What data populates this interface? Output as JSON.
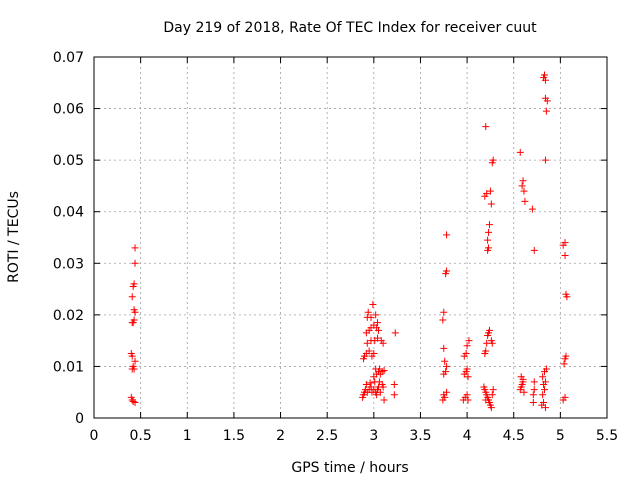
{
  "chart_data": {
    "type": "scatter",
    "title": "Day 219 of 2018, Rate Of TEC Index for receiver cuut",
    "xlabel": "GPS time / hours",
    "ylabel": "ROTI / TECUs",
    "xlim": [
      0,
      5.5
    ],
    "ylim": [
      0,
      0.07
    ],
    "xticks": [
      "0",
      "0.5",
      "1",
      "1.5",
      "2",
      "2.5",
      "3",
      "3.5",
      "4",
      "4.5",
      "5",
      "5.5"
    ],
    "yticks": [
      "0",
      "0.01",
      "0.02",
      "0.03",
      "0.04",
      "0.05",
      "0.06",
      "0.07"
    ],
    "grid": true,
    "marker": "+",
    "color": "#ff0000",
    "series": [
      {
        "name": "ROTI",
        "points": [
          [
            0.4,
            0.004
          ],
          [
            0.41,
            0.0035
          ],
          [
            0.42,
            0.0032
          ],
          [
            0.44,
            0.003
          ],
          [
            0.41,
            0.0095
          ],
          [
            0.42,
            0.01
          ],
          [
            0.43,
            0.0095
          ],
          [
            0.41,
            0.012
          ],
          [
            0.4,
            0.0125
          ],
          [
            0.44,
            0.011
          ],
          [
            0.42,
            0.0185
          ],
          [
            0.43,
            0.019
          ],
          [
            0.41,
            0.0185
          ],
          [
            0.44,
            0.0205
          ],
          [
            0.43,
            0.021
          ],
          [
            0.41,
            0.0235
          ],
          [
            0.42,
            0.0255
          ],
          [
            0.43,
            0.026
          ],
          [
            0.44,
            0.03
          ],
          [
            0.44,
            0.033
          ],
          [
            2.88,
            0.004
          ],
          [
            2.89,
            0.0045
          ],
          [
            2.9,
            0.005
          ],
          [
            2.91,
            0.0055
          ],
          [
            2.93,
            0.005
          ],
          [
            2.95,
            0.0055
          ],
          [
            2.97,
            0.006
          ],
          [
            2.98,
            0.005
          ],
          [
            3.0,
            0.0055
          ],
          [
            3.02,
            0.005
          ],
          [
            3.04,
            0.0055
          ],
          [
            3.05,
            0.006
          ],
          [
            3.07,
            0.005
          ],
          [
            3.09,
            0.0065
          ],
          [
            3.1,
            0.006
          ],
          [
            2.92,
            0.0065
          ],
          [
            2.96,
            0.0068
          ],
          [
            3.01,
            0.007
          ],
          [
            3.03,
            0.0045
          ],
          [
            3.06,
            0.007
          ],
          [
            3.0,
            0.008
          ],
          [
            3.03,
            0.0085
          ],
          [
            3.05,
            0.009
          ],
          [
            3.07,
            0.0085
          ],
          [
            3.09,
            0.009
          ],
          [
            3.11,
            0.0092
          ],
          [
            3.02,
            0.0095
          ],
          [
            3.06,
            0.0095
          ],
          [
            2.89,
            0.0115
          ],
          [
            2.9,
            0.012
          ],
          [
            2.92,
            0.0125
          ],
          [
            2.95,
            0.013
          ],
          [
            2.98,
            0.012
          ],
          [
            3.0,
            0.0125
          ],
          [
            2.93,
            0.0145
          ],
          [
            2.97,
            0.015
          ],
          [
            3.01,
            0.015
          ],
          [
            3.04,
            0.0155
          ],
          [
            3.08,
            0.015
          ],
          [
            3.1,
            0.0145
          ],
          [
            2.92,
            0.0165
          ],
          [
            2.95,
            0.017
          ],
          [
            2.97,
            0.0175
          ],
          [
            3.0,
            0.018
          ],
          [
            3.03,
            0.0175
          ],
          [
            3.05,
            0.017
          ],
          [
            2.93,
            0.0195
          ],
          [
            2.94,
            0.0205
          ],
          [
            2.97,
            0.0195
          ],
          [
            2.99,
            0.022
          ],
          [
            3.02,
            0.02
          ],
          [
            3.04,
            0.0185
          ],
          [
            3.11,
            0.0035
          ],
          [
            3.22,
            0.0045
          ],
          [
            3.22,
            0.0065
          ],
          [
            3.23,
            0.0165
          ],
          [
            3.74,
            0.0035
          ],
          [
            3.75,
            0.0045
          ],
          [
            3.76,
            0.004
          ],
          [
            3.78,
            0.005
          ],
          [
            3.75,
            0.0085
          ],
          [
            3.77,
            0.009
          ],
          [
            3.78,
            0.01
          ],
          [
            3.76,
            0.011
          ],
          [
            3.75,
            0.0135
          ],
          [
            3.74,
            0.019
          ],
          [
            3.75,
            0.0205
          ],
          [
            3.77,
            0.028
          ],
          [
            3.78,
            0.0285
          ],
          [
            3.78,
            0.0355
          ],
          [
            3.96,
            0.0035
          ],
          [
            3.98,
            0.004
          ],
          [
            4.0,
            0.0045
          ],
          [
            4.01,
            0.0035
          ],
          [
            3.97,
            0.0085
          ],
          [
            3.99,
            0.009
          ],
          [
            4.0,
            0.0095
          ],
          [
            4.01,
            0.008
          ],
          [
            3.97,
            0.012
          ],
          [
            3.99,
            0.0125
          ],
          [
            4.0,
            0.014
          ],
          [
            4.02,
            0.015
          ],
          [
            4.18,
            0.006
          ],
          [
            4.19,
            0.0055
          ],
          [
            4.2,
            0.005
          ],
          [
            4.21,
            0.0045
          ],
          [
            4.22,
            0.004
          ],
          [
            4.23,
            0.0035
          ],
          [
            4.24,
            0.003
          ],
          [
            4.25,
            0.0025
          ],
          [
            4.26,
            0.002
          ],
          [
            4.27,
            0.0045
          ],
          [
            4.28,
            0.0055
          ],
          [
            4.2,
            0.0035
          ],
          [
            4.19,
            0.0125
          ],
          [
            4.2,
            0.013
          ],
          [
            4.21,
            0.0145
          ],
          [
            4.22,
            0.016
          ],
          [
            4.23,
            0.0165
          ],
          [
            4.24,
            0.017
          ],
          [
            4.26,
            0.015
          ],
          [
            4.27,
            0.0145
          ],
          [
            4.22,
            0.0325
          ],
          [
            4.23,
            0.033
          ],
          [
            4.22,
            0.0345
          ],
          [
            4.23,
            0.036
          ],
          [
            4.24,
            0.0375
          ],
          [
            4.26,
            0.0415
          ],
          [
            4.19,
            0.043
          ],
          [
            4.21,
            0.0435
          ],
          [
            4.25,
            0.044
          ],
          [
            4.27,
            0.0495
          ],
          [
            4.28,
            0.05
          ],
          [
            4.2,
            0.0565
          ],
          [
            4.57,
            0.0055
          ],
          [
            4.58,
            0.006
          ],
          [
            4.59,
            0.0065
          ],
          [
            4.6,
            0.007
          ],
          [
            4.58,
            0.008
          ],
          [
            4.6,
            0.0075
          ],
          [
            4.61,
            0.005
          ],
          [
            4.57,
            0.0515
          ],
          [
            4.59,
            0.045
          ],
          [
            4.6,
            0.046
          ],
          [
            4.61,
            0.044
          ],
          [
            4.62,
            0.042
          ],
          [
            4.71,
            0.003
          ],
          [
            4.71,
            0.0045
          ],
          [
            4.72,
            0.0055
          ],
          [
            4.72,
            0.007
          ],
          [
            4.7,
            0.0405
          ],
          [
            4.72,
            0.0325
          ],
          [
            4.8,
            0.0025
          ],
          [
            4.82,
            0.003
          ],
          [
            4.84,
            0.002
          ],
          [
            4.81,
            0.0045
          ],
          [
            4.83,
            0.0055
          ],
          [
            4.82,
            0.0065
          ],
          [
            4.84,
            0.007
          ],
          [
            4.81,
            0.008
          ],
          [
            4.83,
            0.009
          ],
          [
            4.85,
            0.0095
          ],
          [
            4.82,
            0.066
          ],
          [
            4.83,
            0.0665
          ],
          [
            4.84,
            0.0655
          ],
          [
            4.84,
            0.062
          ],
          [
            4.86,
            0.0615
          ],
          [
            4.85,
            0.0595
          ],
          [
            4.84,
            0.05
          ],
          [
            5.03,
            0.0035
          ],
          [
            5.05,
            0.004
          ],
          [
            5.04,
            0.0105
          ],
          [
            5.05,
            0.0115
          ],
          [
            5.06,
            0.012
          ],
          [
            5.03,
            0.0335
          ],
          [
            5.05,
            0.034
          ],
          [
            5.05,
            0.0315
          ],
          [
            5.06,
            0.024
          ],
          [
            5.07,
            0.0235
          ]
        ]
      }
    ]
  }
}
